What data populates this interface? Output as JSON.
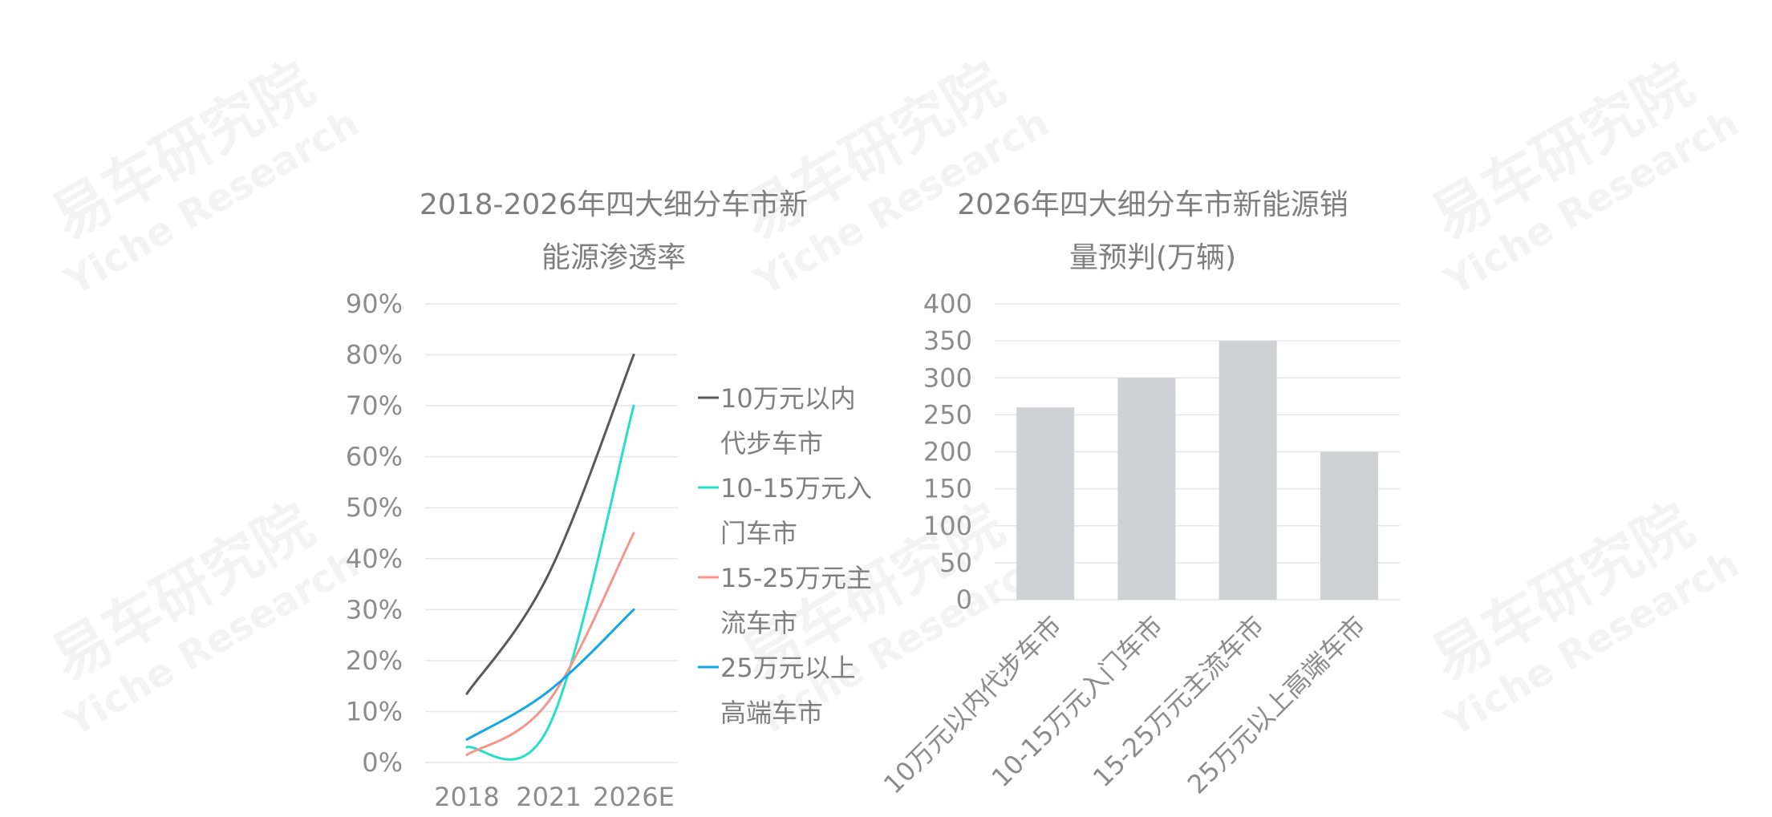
{
  "watermark": {
    "cn": "易车研究院",
    "en": "Yiche Research"
  },
  "chart_data": [
    {
      "type": "line",
      "title_lines": [
        "2018-2026年四大细分车市新",
        "能源渗透率"
      ],
      "categories": [
        "2018",
        "2021",
        "2026E"
      ],
      "ylim": [
        0,
        90
      ],
      "yticks": [
        "0%",
        "10%",
        "20%",
        "30%",
        "40%",
        "50%",
        "60%",
        "70%",
        "80%",
        "90%"
      ],
      "grid": true,
      "legend_position": "right",
      "series": [
        {
          "name_lines": [
            "10万元以内",
            "代步车市"
          ],
          "color": "#595959",
          "values": [
            13.5,
            37,
            80
          ]
        },
        {
          "name_lines": [
            "10-15万元入",
            "门车市"
          ],
          "color": "#26dfc8",
          "values": [
            3,
            7,
            70
          ]
        },
        {
          "name_lines": [
            "15-25万元主",
            "流车市"
          ],
          "color": "#f4968a",
          "values": [
            1.5,
            12,
            45
          ]
        },
        {
          "name_lines": [
            "25万元以上",
            "高端车市"
          ],
          "color": "#12a6e6",
          "values": [
            4.5,
            14,
            30
          ]
        }
      ]
    },
    {
      "type": "bar",
      "title_lines": [
        "2026年四大细分车市新能源销",
        "量预判(万辆)"
      ],
      "categories": [
        "10万元以内代步车市",
        "10-15万元入门车市",
        "15-25万元主流车市",
        "25万元以上高端车市"
      ],
      "values": [
        260,
        300,
        350,
        200
      ],
      "ylim": [
        0,
        400
      ],
      "yticks": [
        "0",
        "50",
        "100",
        "150",
        "200",
        "250",
        "300",
        "350",
        "400"
      ],
      "grid": true,
      "bar_color": "#cfd1d4"
    }
  ]
}
